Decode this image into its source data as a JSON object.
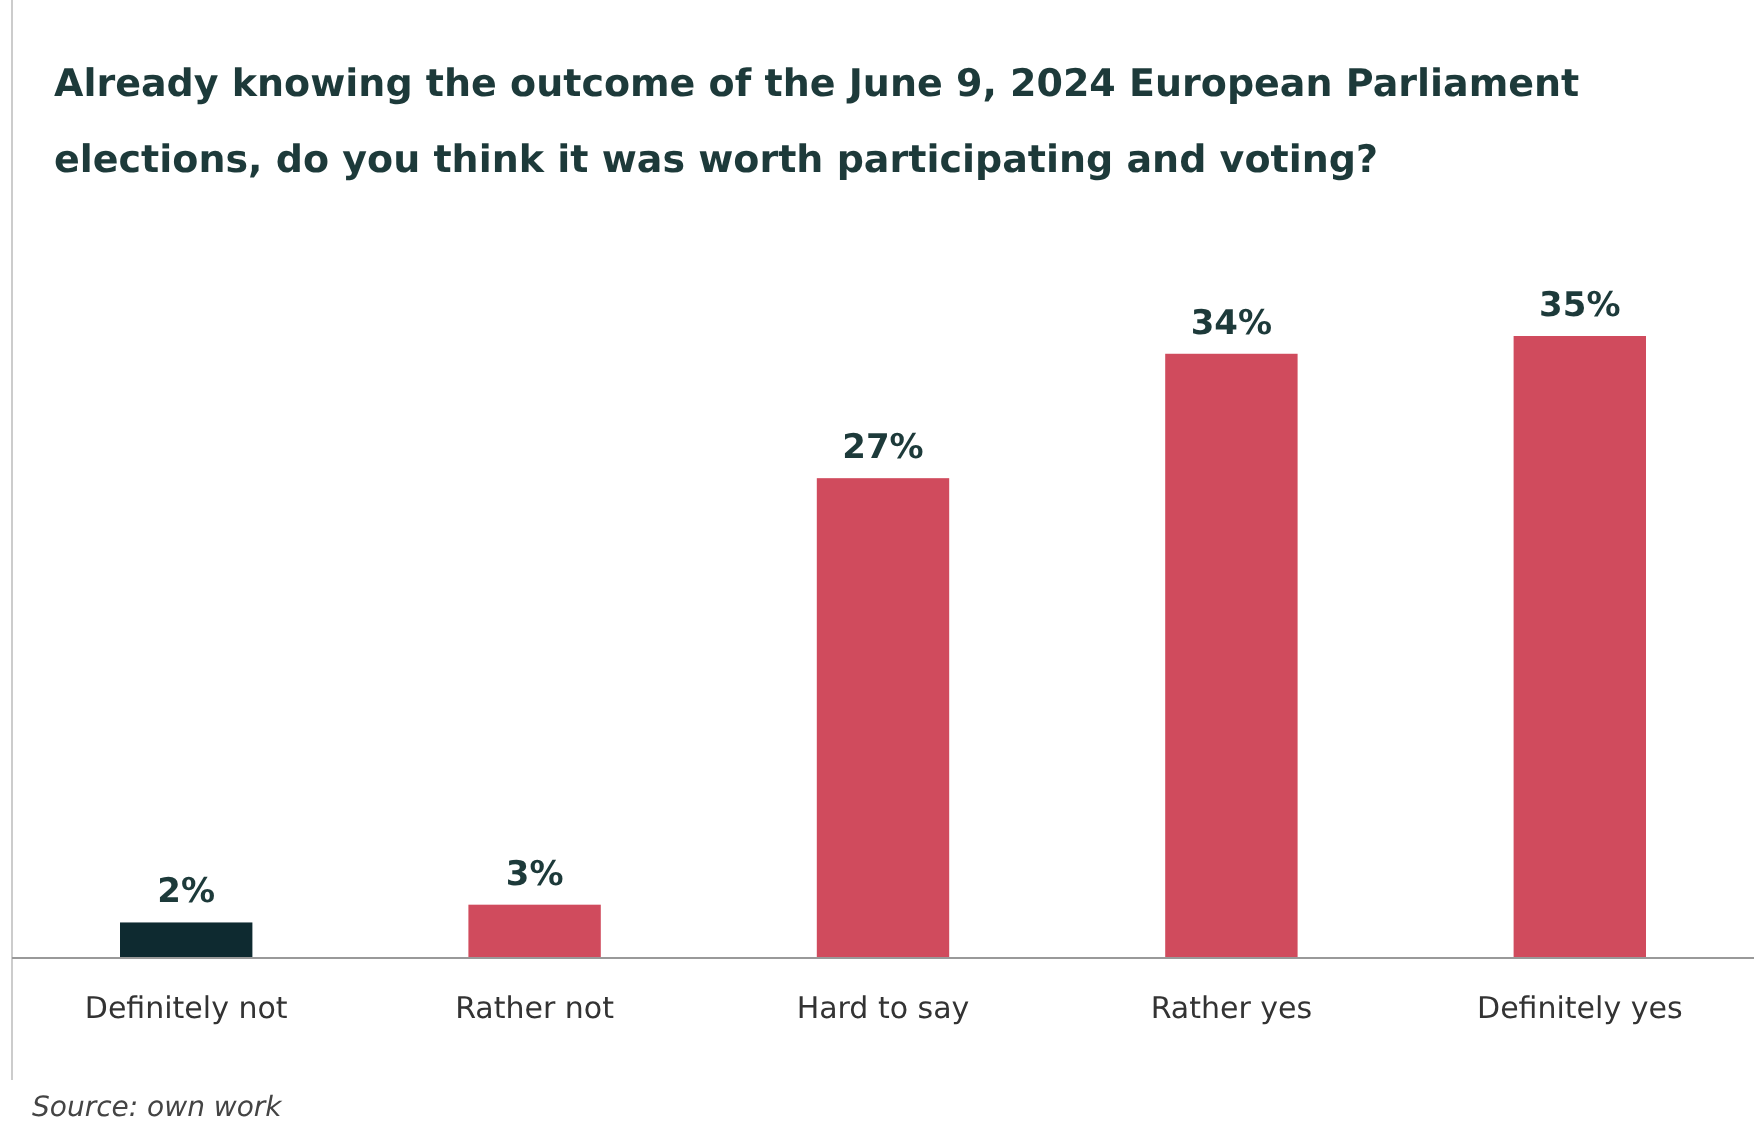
{
  "chart_data": {
    "type": "bar",
    "title": "Already knowing the outcome of the June 9, 2024 European Parliament elections, do you think it was worth participating and voting?",
    "categories": [
      "Definitely not",
      "Rather not",
      "Hard to say",
      "Rather yes",
      "Definitely yes"
    ],
    "values": [
      2,
      3,
      27,
      34,
      35
    ],
    "colors": [
      "#0e2a30",
      "#d04b5d",
      "#d04b5d",
      "#d04b5d",
      "#d04b5d"
    ],
    "value_labels": [
      "2%",
      "3%",
      "27%",
      "34%",
      "35%"
    ],
    "annotations": [
      "Source: own work"
    ]
  }
}
